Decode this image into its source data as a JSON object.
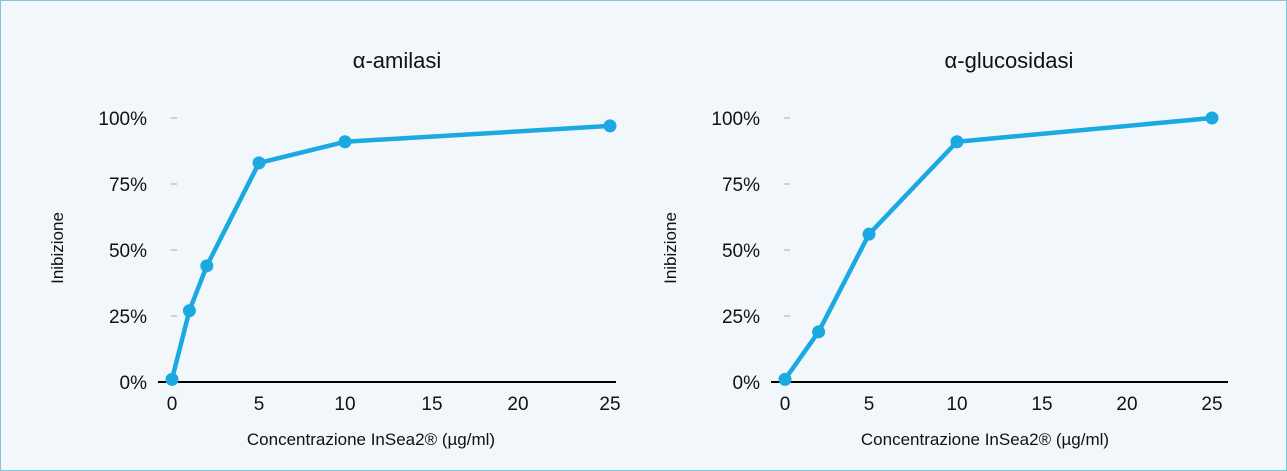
{
  "chart_data": [
    {
      "type": "line",
      "title": "α-amilasi",
      "xlabel": "Concentrazione InSea2® (µg/ml)",
      "ylabel": "Inibizione",
      "x_ticks": [
        "0",
        "5",
        "10",
        "15",
        "20",
        "25"
      ],
      "y_ticks": [
        "0%",
        "25%",
        "50%",
        "75%",
        "100%"
      ],
      "series": [
        {
          "x": [
            0,
            1,
            2,
            5,
            10,
            25
          ],
          "y": [
            1,
            27,
            44,
            83,
            91,
            97
          ]
        }
      ],
      "ylim": [
        0,
        100
      ],
      "grid": false,
      "color": "#1aa9e0"
    },
    {
      "type": "line",
      "title": "α-glucosidasi",
      "xlabel": "Concentrazione InSea2® (µg/ml)",
      "ylabel": "Inibizione",
      "x_ticks": [
        "0",
        "5",
        "10",
        "15",
        "20",
        "25"
      ],
      "y_ticks": [
        "0%",
        "25%",
        "50%",
        "75%",
        "100%"
      ],
      "series": [
        {
          "x": [
            0,
            2,
            5,
            10,
            25
          ],
          "y": [
            1,
            19,
            56,
            91,
            100
          ]
        }
      ],
      "ylim": [
        0,
        100
      ],
      "grid": false,
      "color": "#1aa9e0"
    }
  ]
}
